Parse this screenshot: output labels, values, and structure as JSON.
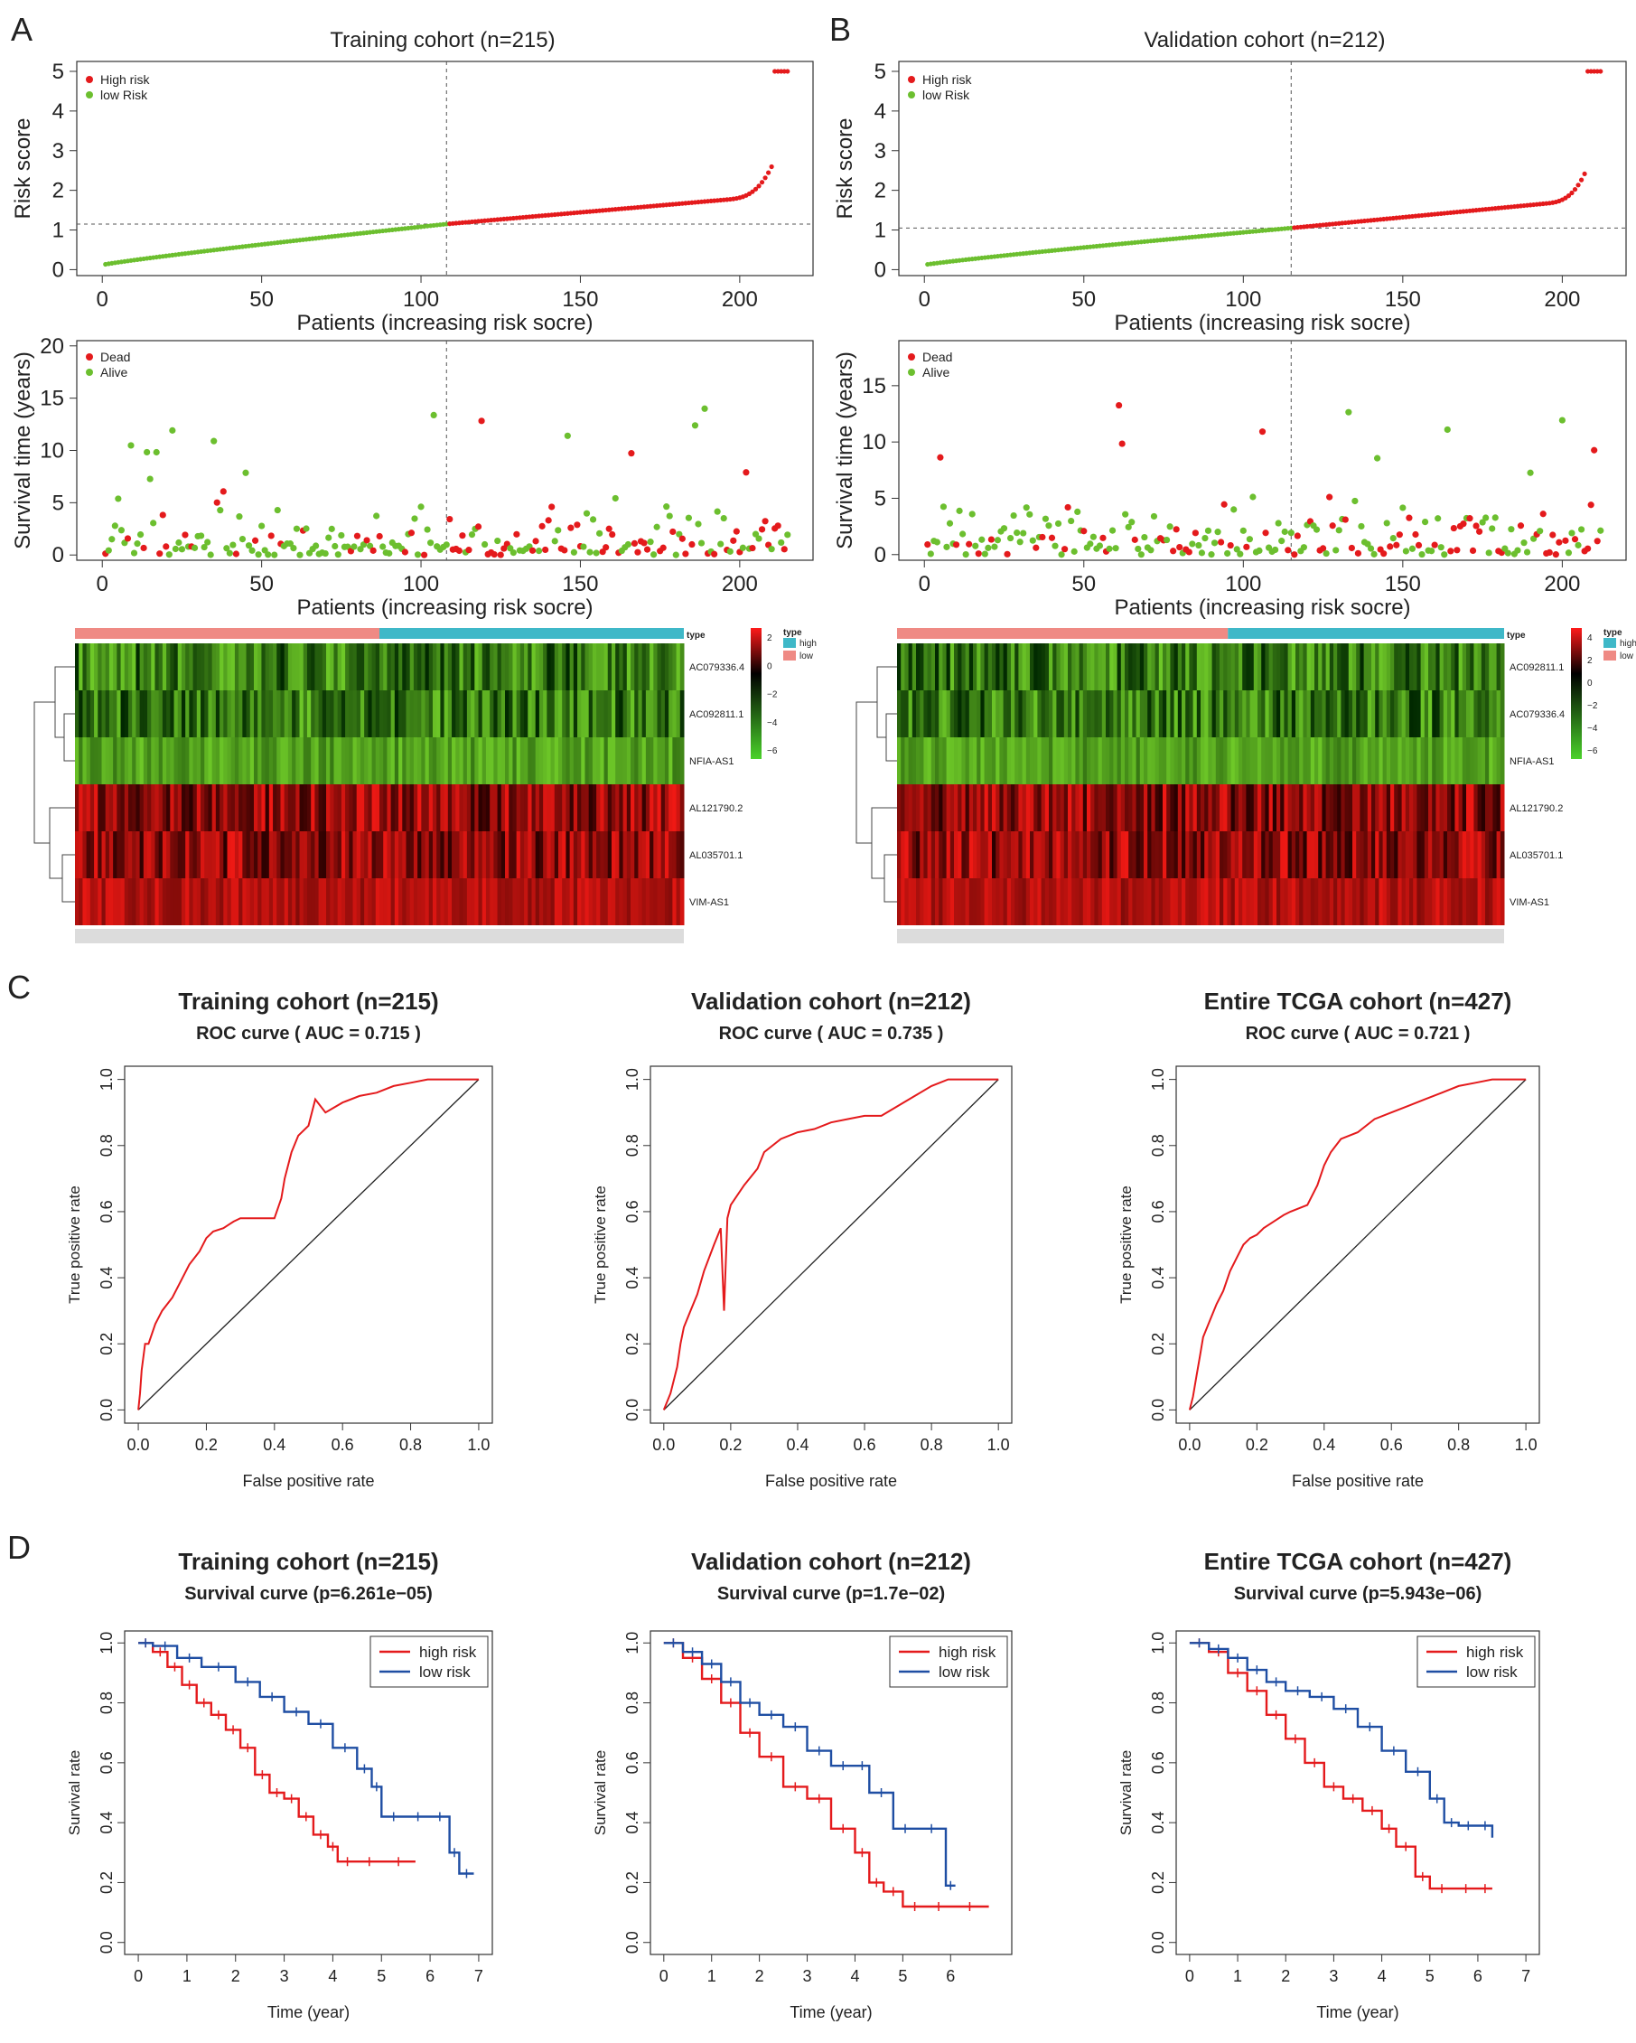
{
  "panel_letters": [
    "A",
    "B",
    "C",
    "D"
  ],
  "colors": {
    "high": "#e41a1c",
    "low": "#6cbf2f",
    "km_high": "#e41a1c",
    "km_low": "#1f4ea3",
    "heat_high_bar": "#3fb8c8",
    "heat_low_bar": "#ef8a84"
  },
  "risk_panels": [
    {
      "letter": "A",
      "title": "Training cohort (n=215)",
      "n": 215,
      "cut_index": 108,
      "cut_score": 1.15,
      "score_axis": {
        "ylabel": "Risk score",
        "yticks": [
          "0",
          "1",
          "2",
          "3",
          "4",
          "5"
        ],
        "xticks": [
          "0",
          "50",
          "100",
          "150",
          "200"
        ],
        "xlabel": "Patients (increasing risk socre)"
      },
      "score_legend": [
        "High risk",
        "low Risk"
      ],
      "surv_axis": {
        "ylabel": "Survival time (years)",
        "yticks": [
          "0",
          "5",
          "10",
          "15",
          "20"
        ],
        "ymax": 20.5,
        "xticks": [
          "0",
          "50",
          "100",
          "150",
          "200"
        ],
        "xlabel": "Patients (increasing risk socre)"
      },
      "surv_legend": [
        "Dead",
        "Alive"
      ],
      "heat_genes": [
        "AC079336.4",
        "AC092811.1",
        "NFIA-AS1",
        "AL121790.2",
        "AL035701.1",
        "VIM-AS1"
      ],
      "heat_legend_ticks": [
        "2",
        "0",
        "−2",
        "−4",
        "−6"
      ],
      "heat_type_title": "type",
      "heat_type_labels": [
        "high",
        "low"
      ]
    },
    {
      "letter": "B",
      "title": "Validation cohort (n=212)",
      "n": 212,
      "cut_index": 115,
      "cut_score": 1.05,
      "score_axis": {
        "ylabel": "Risk score",
        "yticks": [
          "0",
          "1",
          "2",
          "3",
          "4",
          "5"
        ],
        "xticks": [
          "0",
          "50",
          "100",
          "150",
          "200"
        ],
        "xlabel": "Patients (increasing risk socre)"
      },
      "score_legend": [
        "High risk",
        "low Risk"
      ],
      "surv_axis": {
        "ylabel": "Survival time (years)",
        "yticks": [
          "0",
          "5",
          "10",
          "15"
        ],
        "ymax": 19,
        "xticks": [
          "0",
          "50",
          "100",
          "150",
          "200"
        ],
        "xlabel": "Patients (increasing risk socre)"
      },
      "surv_legend": [
        "Dead",
        "Alive"
      ],
      "heat_genes": [
        "AC092811.1",
        "AC079336.4",
        "NFIA-AS1",
        "AL121790.2",
        "AL035701.1",
        "VIM-AS1"
      ],
      "heat_legend_ticks": [
        "4",
        "2",
        "0",
        "−2",
        "−4",
        "−6"
      ],
      "heat_type_title": "type",
      "heat_type_labels": [
        "high",
        "low"
      ]
    }
  ],
  "chart_data": [
    {
      "type": "line",
      "panel": "C",
      "title": "Training cohort (n=215)",
      "subtitle": "ROC curve ( AUC =  0.715 )",
      "xlabel": "False positive rate",
      "ylabel": "True positive rate",
      "xlim": [
        0,
        1
      ],
      "ylim": [
        0,
        1
      ],
      "xticks": [
        "0.0",
        "0.2",
        "0.4",
        "0.6",
        "0.8",
        "1.0"
      ],
      "yticks": [
        "0.0",
        "0.2",
        "0.4",
        "0.6",
        "0.8",
        "1.0"
      ],
      "series": [
        {
          "x": [
            0,
            0.005,
            0.01,
            0.02,
            0.03,
            0.05,
            0.07,
            0.1,
            0.12,
            0.15,
            0.18,
            0.2,
            0.22,
            0.25,
            0.28,
            0.3,
            0.35,
            0.4,
            0.42,
            0.43,
            0.45,
            0.47,
            0.5,
            0.52,
            0.55,
            0.6,
            0.65,
            0.7,
            0.75,
            0.8,
            0.85,
            0.9,
            0.95,
            1.0
          ],
          "y": [
            0,
            0.05,
            0.12,
            0.2,
            0.2,
            0.26,
            0.3,
            0.34,
            0.38,
            0.44,
            0.48,
            0.52,
            0.54,
            0.55,
            0.57,
            0.58,
            0.58,
            0.58,
            0.64,
            0.7,
            0.78,
            0.83,
            0.86,
            0.94,
            0.9,
            0.93,
            0.95,
            0.96,
            0.98,
            0.99,
            1.0,
            1.0,
            1.0,
            1.0
          ]
        }
      ]
    },
    {
      "type": "line",
      "panel": "C",
      "title": "Validation cohort (n=212)",
      "subtitle": "ROC curve ( AUC =  0.735 )",
      "xlabel": "False positive rate",
      "ylabel": "True positive rate",
      "xlim": [
        0,
        1
      ],
      "ylim": [
        0,
        1
      ],
      "xticks": [
        "0.0",
        "0.2",
        "0.4",
        "0.6",
        "0.8",
        "1.0"
      ],
      "yticks": [
        "0.0",
        "0.2",
        "0.4",
        "0.6",
        "0.8",
        "1.0"
      ],
      "series": [
        {
          "x": [
            0,
            0.02,
            0.04,
            0.05,
            0.06,
            0.08,
            0.1,
            0.12,
            0.15,
            0.17,
            0.18,
            0.19,
            0.2,
            0.24,
            0.28,
            0.3,
            0.35,
            0.4,
            0.45,
            0.5,
            0.55,
            0.6,
            0.65,
            0.7,
            0.75,
            0.8,
            0.85,
            0.9,
            0.95,
            1.0
          ],
          "y": [
            0,
            0.05,
            0.13,
            0.2,
            0.25,
            0.3,
            0.35,
            0.42,
            0.5,
            0.55,
            0.3,
            0.58,
            0.62,
            0.68,
            0.73,
            0.78,
            0.82,
            0.84,
            0.85,
            0.87,
            0.88,
            0.89,
            0.89,
            0.92,
            0.95,
            0.98,
            1.0,
            1.0,
            1.0,
            1.0
          ]
        }
      ]
    },
    {
      "type": "line",
      "panel": "C",
      "title": "Entire TCGA cohort (n=427)",
      "subtitle": "ROC curve ( AUC =  0.721 )",
      "xlabel": "False positive rate",
      "ylabel": "True positive rate",
      "xlim": [
        0,
        1
      ],
      "ylim": [
        0,
        1
      ],
      "xticks": [
        "0.0",
        "0.2",
        "0.4",
        "0.6",
        "0.8",
        "1.0"
      ],
      "yticks": [
        "0.0",
        "0.2",
        "0.4",
        "0.6",
        "0.8",
        "1.0"
      ],
      "series": [
        {
          "x": [
            0,
            0.01,
            0.02,
            0.03,
            0.04,
            0.06,
            0.08,
            0.1,
            0.12,
            0.14,
            0.16,
            0.18,
            0.2,
            0.22,
            0.25,
            0.28,
            0.3,
            0.35,
            0.38,
            0.4,
            0.42,
            0.45,
            0.5,
            0.55,
            0.6,
            0.65,
            0.7,
            0.75,
            0.8,
            0.85,
            0.9,
            0.95,
            1.0
          ],
          "y": [
            0,
            0.04,
            0.1,
            0.16,
            0.22,
            0.27,
            0.32,
            0.36,
            0.42,
            0.46,
            0.5,
            0.52,
            0.53,
            0.55,
            0.57,
            0.59,
            0.6,
            0.62,
            0.68,
            0.74,
            0.78,
            0.82,
            0.84,
            0.88,
            0.9,
            0.92,
            0.94,
            0.96,
            0.98,
            0.99,
            1.0,
            1.0,
            1.0
          ]
        }
      ]
    },
    {
      "type": "line",
      "panel": "D",
      "title": "Training cohort (n=215)",
      "subtitle": "Survival curve (p=6.261e−05)",
      "xlabel": "Time (year)",
      "ylabel": "Survival rate",
      "xlim": [
        0,
        7
      ],
      "ylim": [
        0,
        1
      ],
      "xticks": [
        "0",
        "1",
        "2",
        "3",
        "4",
        "5",
        "6",
        "7"
      ],
      "yticks": [
        "0.0",
        "0.2",
        "0.4",
        "0.6",
        "0.8",
        "1.0"
      ],
      "legend": [
        "high risk",
        "low risk"
      ],
      "series": [
        {
          "name": "high risk",
          "x": [
            0,
            0.3,
            0.6,
            0.9,
            1.2,
            1.5,
            1.8,
            2.1,
            2.4,
            2.7,
            3.0,
            3.3,
            3.6,
            3.9,
            4.1,
            4.5,
            5.0,
            5.7
          ],
          "y": [
            1.0,
            0.97,
            0.92,
            0.86,
            0.8,
            0.76,
            0.71,
            0.65,
            0.56,
            0.5,
            0.48,
            0.42,
            0.36,
            0.32,
            0.27,
            0.27,
            0.27,
            0.27
          ]
        },
        {
          "name": "low risk",
          "x": [
            0,
            0.3,
            0.8,
            1.3,
            2.0,
            2.5,
            3.0,
            3.5,
            4.0,
            4.5,
            4.8,
            5.0,
            5.5,
            6.0,
            6.4,
            6.6,
            6.9
          ],
          "y": [
            1.0,
            0.99,
            0.95,
            0.92,
            0.87,
            0.82,
            0.77,
            0.73,
            0.65,
            0.58,
            0.52,
            0.42,
            0.42,
            0.42,
            0.3,
            0.23,
            0.23
          ]
        }
      ]
    },
    {
      "type": "line",
      "panel": "D",
      "title": "Validation cohort (n=212)",
      "subtitle": "Survival curve (p=1.7e−02)",
      "xlabel": "Time (year)",
      "ylabel": "Survival rate",
      "xlim": [
        0,
        7
      ],
      "ylim": [
        0,
        1
      ],
      "xticks": [
        "0",
        "1",
        "2",
        "3",
        "4",
        "5",
        "6"
      ],
      "yticks": [
        "0.0",
        "0.2",
        "0.4",
        "0.6",
        "0.8",
        "1.0"
      ],
      "legend": [
        "high risk",
        "low risk"
      ],
      "series": [
        {
          "name": "high risk",
          "x": [
            0,
            0.4,
            0.8,
            1.2,
            1.6,
            2.0,
            2.5,
            3.0,
            3.5,
            4.0,
            4.3,
            4.6,
            5.0,
            5.5,
            6.0,
            6.8
          ],
          "y": [
            1.0,
            0.95,
            0.88,
            0.8,
            0.7,
            0.62,
            0.52,
            0.48,
            0.38,
            0.3,
            0.2,
            0.17,
            0.12,
            0.12,
            0.12,
            0.12
          ]
        },
        {
          "name": "low risk",
          "x": [
            0,
            0.4,
            0.8,
            1.2,
            1.6,
            2.0,
            2.5,
            3.0,
            3.5,
            4.0,
            4.3,
            4.8,
            5.3,
            5.9,
            6.1
          ],
          "y": [
            1.0,
            0.97,
            0.93,
            0.87,
            0.8,
            0.76,
            0.72,
            0.64,
            0.59,
            0.59,
            0.5,
            0.38,
            0.38,
            0.19,
            0.19
          ]
        }
      ]
    },
    {
      "type": "line",
      "panel": "D",
      "title": "Entire TCGA cohort (n=427)",
      "subtitle": "Survival curve (p=5.943e−06)",
      "xlabel": "Time (year)",
      "ylabel": "Survival rate",
      "xlim": [
        0,
        7
      ],
      "ylim": [
        0,
        1
      ],
      "xticks": [
        "0",
        "1",
        "2",
        "3",
        "4",
        "5",
        "6",
        "7"
      ],
      "yticks": [
        "0.0",
        "0.2",
        "0.4",
        "0.6",
        "0.8",
        "1.0"
      ],
      "legend": [
        "high risk",
        "low risk"
      ],
      "series": [
        {
          "name": "high risk",
          "x": [
            0,
            0.4,
            0.8,
            1.2,
            1.6,
            2.0,
            2.4,
            2.8,
            3.2,
            3.6,
            4.0,
            4.3,
            4.7,
            5.0,
            5.5,
            6.0,
            6.3
          ],
          "y": [
            1.0,
            0.97,
            0.9,
            0.84,
            0.76,
            0.68,
            0.6,
            0.52,
            0.48,
            0.44,
            0.38,
            0.32,
            0.22,
            0.18,
            0.18,
            0.18,
            0.18
          ]
        },
        {
          "name": "low risk",
          "x": [
            0,
            0.4,
            0.8,
            1.2,
            1.6,
            2.0,
            2.5,
            3.0,
            3.5,
            4.0,
            4.5,
            5.0,
            5.3,
            5.6,
            6.0,
            6.3
          ],
          "y": [
            1.0,
            0.98,
            0.95,
            0.91,
            0.87,
            0.84,
            0.82,
            0.78,
            0.72,
            0.64,
            0.57,
            0.48,
            0.4,
            0.39,
            0.39,
            0.35
          ]
        }
      ]
    }
  ]
}
